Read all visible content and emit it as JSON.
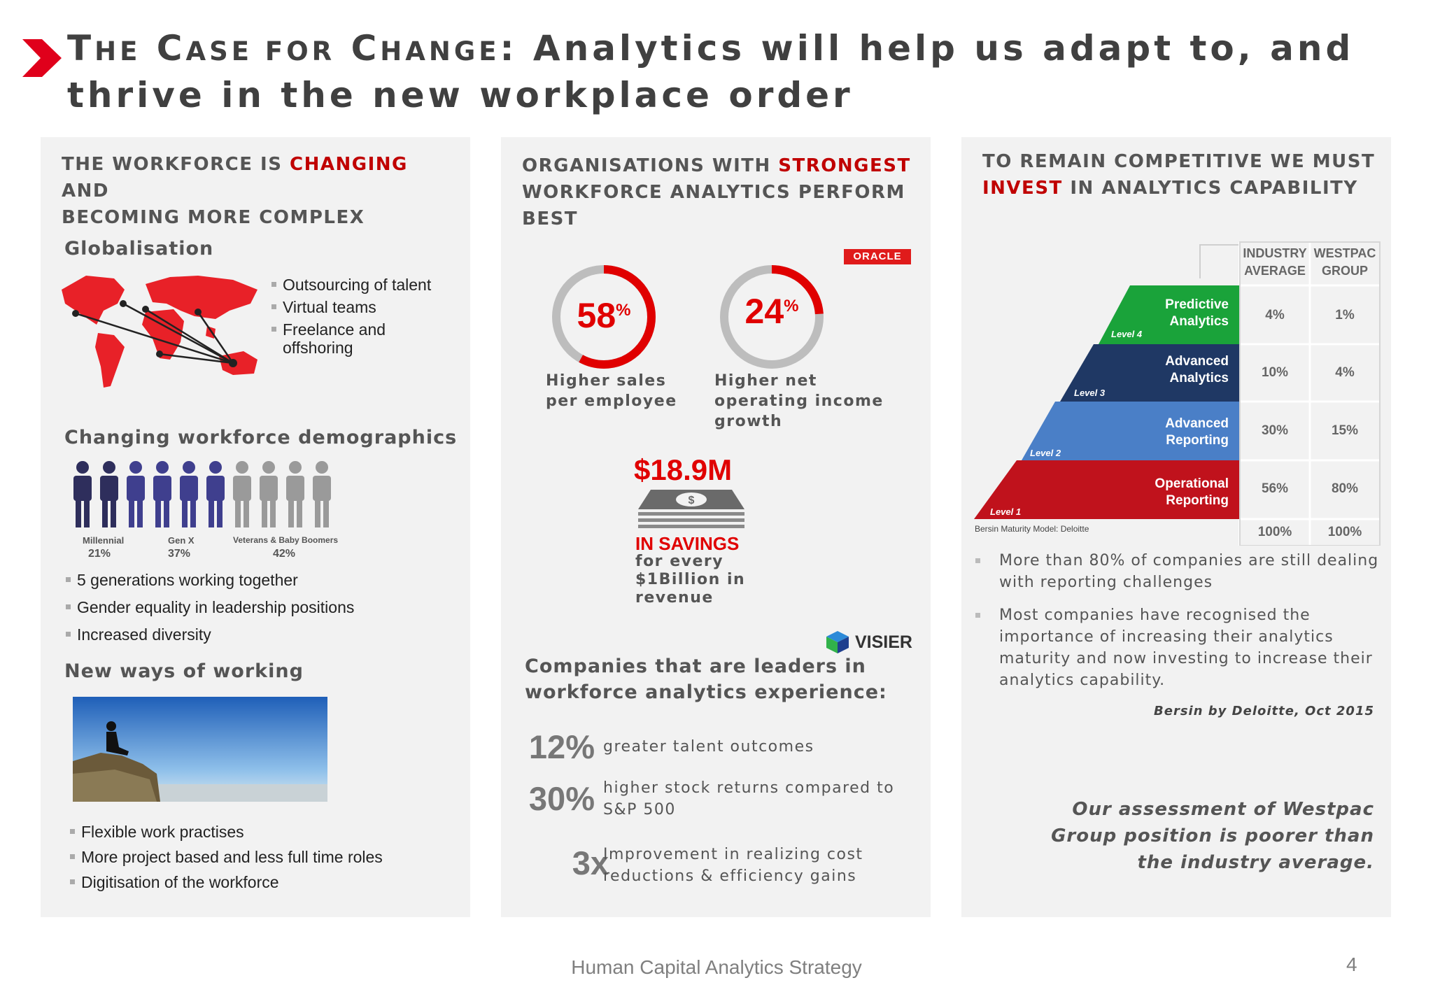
{
  "title": {
    "part1_cap": "T",
    "part1_rest": "HE",
    "part2_cap": "C",
    "part2_rest": "ASE FOR",
    "part3_cap": "C",
    "part3_rest": "HANGE",
    "part4": ": Analytics will help us adapt to, and thrive in the new workplace order"
  },
  "panel1": {
    "heading_a": "THE WORKFORCE IS ",
    "heading_red": "CHANGING",
    "heading_b": " AND",
    "heading_c": "BECOMING MORE COMPLEX",
    "globalisation": {
      "heading": "Globalisation",
      "bullets": [
        "Outsourcing of talent",
        "Virtual teams",
        "Freelance and offshoring"
      ]
    },
    "demographics": {
      "heading": "Changing workforce demographics",
      "groups": [
        {
          "label": "Millennial",
          "pct": "21%"
        },
        {
          "label": "Gen X",
          "pct": "37%"
        },
        {
          "label": "Veterans & Baby Boomers",
          "pct": "42%"
        }
      ],
      "bullets": [
        "5 generations working together",
        "Gender equality in leadership positions",
        "Increased diversity"
      ]
    },
    "new_ways": {
      "heading": "New ways of working",
      "bullets": [
        "Flexible work practises",
        "More project based and less full time roles",
        "Digitisation of the workforce"
      ]
    }
  },
  "panel2": {
    "heading_a": "ORGANISATIONS WITH ",
    "heading_red": "STRONGEST",
    "heading_b": "WORKFORCE ANALYTICS PERFORM",
    "heading_c": "BEST",
    "oracle_logo": "ORACLE",
    "rings": [
      {
        "value": "58",
        "pct_sign": "%",
        "fraction": 0.58,
        "label_1": "Higher sales",
        "label_2": "per employee",
        "label_3": ""
      },
      {
        "value": "24",
        "pct_sign": "%",
        "fraction": 0.24,
        "label_1": "Higher net",
        "label_2": "operating income",
        "label_3": "growth"
      }
    ],
    "savings": {
      "amount": "$18.9M",
      "tag": "IN SAVINGS",
      "line1": "for every",
      "line2": "$1Billion in",
      "line3": "revenue"
    },
    "visier_logo": "VISIER",
    "leaders_heading_1": "Companies that are leaders in",
    "leaders_heading_2": "workforce analytics experience:",
    "stats": [
      {
        "num": "12%",
        "line1": "greater talent outcomes",
        "line2": ""
      },
      {
        "num": "30%",
        "line1": "higher stock returns compared to",
        "line2": "S&P 500"
      },
      {
        "num": "3x",
        "line1": "Improvement in realizing cost",
        "line2": "reductions & efficiency gains"
      }
    ]
  },
  "panel3": {
    "heading_a": "TO REMAIN COMPETITIVE WE MUST",
    "heading_red": "INVEST",
    "heading_b": " IN ANALYTICS CAPABILITY",
    "table_headers": [
      "INDUSTRY",
      "AVERAGE",
      "WESTPAC",
      "GROUP"
    ],
    "levels": [
      {
        "name_1": "Predictive",
        "name_2": "Analytics",
        "level": "Level 4",
        "industry": "4%",
        "westpac": "1%",
        "color": "#1aa33a"
      },
      {
        "name_1": "Advanced",
        "name_2": "Analytics",
        "level": "Level 3",
        "industry": "10%",
        "westpac": "4%",
        "color": "#1f3864"
      },
      {
        "name_1": "Advanced",
        "name_2": "Reporting",
        "level": "Level 2",
        "industry": "30%",
        "westpac": "15%",
        "color": "#4a7fc7"
      },
      {
        "name_1": "Operational",
        "name_2": "Reporting",
        "level": "Level 1",
        "industry": "56%",
        "westpac": "80%",
        "color": "#c0121c"
      }
    ],
    "totals": {
      "industry": "100%",
      "westpac": "100%"
    },
    "source_note": "Bersin Maturity Model: Deloitte",
    "bullets": [
      "More than 80% of companies are still dealing with reporting challenges",
      "Most companies have recognised the importance of increasing their analytics maturity and now investing to increase their analytics capability."
    ],
    "citation": "Bersin by Deloitte, Oct 2015",
    "assessment": "Our assessment of Westpac Group position is poorer than the industry average."
  },
  "footer": {
    "title": "Human Capital Analytics Strategy",
    "page": "4"
  }
}
